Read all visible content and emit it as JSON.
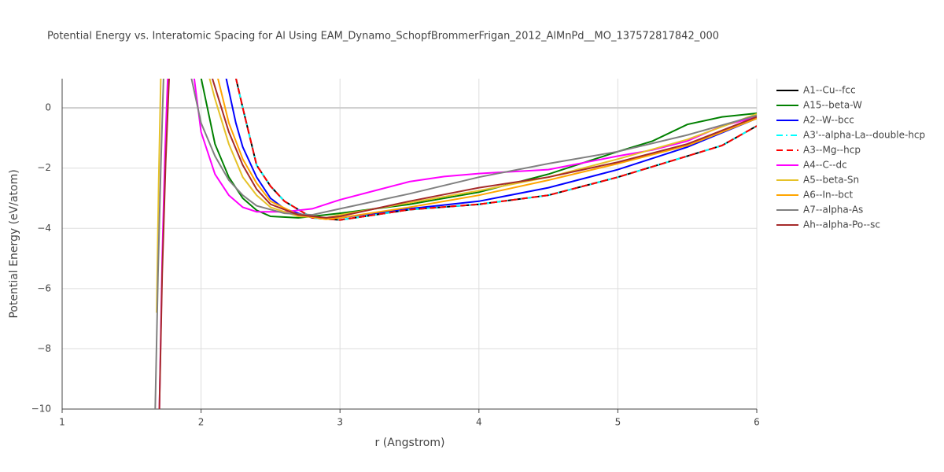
{
  "chart_data": {
    "type": "line",
    "title": "Potential Energy vs. Interatomic Spacing for Al Using EAM_Dynamo_SchopfBrommerFrigan_2012_AlMnPd__MO_137572817842_000",
    "x_label": "r (Angstrom)",
    "y_label": "Potential Energy (eV/atom)",
    "xlim": [
      1,
      6
    ],
    "ylim": [
      -10,
      0.97
    ],
    "xticks": [
      1,
      2,
      3,
      4,
      5,
      6
    ],
    "yticks": [
      {
        "value": -10,
        "label": "−10"
      },
      {
        "value": -8,
        "label": "−8"
      },
      {
        "value": -6,
        "label": "−6"
      },
      {
        "value": -4,
        "label": "−4"
      },
      {
        "value": -2,
        "label": "−2"
      },
      0
    ],
    "grid": true,
    "legend": "right",
    "series": [
      {
        "name": "A1--Cu--fcc",
        "color": "#000000",
        "dash": "solid",
        "x": [
          2.25,
          2.3,
          2.4,
          2.5,
          2.6,
          2.8,
          3.0,
          3.25,
          3.5,
          4.0,
          4.5,
          5.0,
          5.5,
          5.75,
          6.0
        ],
        "values": [
          1,
          0,
          -1.9,
          -2.6,
          -3.1,
          -3.65,
          -3.72,
          -3.55,
          -3.38,
          -3.2,
          -2.9,
          -2.3,
          -1.6,
          -1.25,
          -0.6
        ]
      },
      {
        "name": "A15--beta-W",
        "color": "#008000",
        "dash": "solid",
        "x": [
          2.0,
          2.1,
          2.2,
          2.3,
          2.4,
          2.5,
          2.7,
          3.0,
          3.5,
          4.0,
          4.5,
          5.0,
          5.25,
          5.5,
          5.75,
          6.0
        ],
        "values": [
          1,
          -1.2,
          -2.3,
          -3.0,
          -3.4,
          -3.6,
          -3.65,
          -3.5,
          -3.2,
          -2.8,
          -2.2,
          -1.45,
          -1.1,
          -0.55,
          -0.3,
          -0.18
        ]
      },
      {
        "name": "A2--W--bcc",
        "color": "#0000ff",
        "dash": "solid",
        "x": [
          2.18,
          2.25,
          2.3,
          2.4,
          2.5,
          2.6,
          2.8,
          3.0,
          3.5,
          4.0,
          4.5,
          5.0,
          5.5,
          6.0
        ],
        "values": [
          1,
          -0.5,
          -1.3,
          -2.3,
          -3.0,
          -3.35,
          -3.65,
          -3.65,
          -3.35,
          -3.1,
          -2.65,
          -2.05,
          -1.3,
          -0.35
        ]
      },
      {
        "name": "A3'--alpha-La--double-hcp",
        "color": "#00ffff",
        "dash": "dashdot",
        "x": [
          2.25,
          2.3,
          2.4,
          2.5,
          2.6,
          2.8,
          3.0,
          3.25,
          3.5,
          4.0,
          4.5,
          5.0,
          5.5,
          5.75,
          6.0
        ],
        "values": [
          1,
          0,
          -1.9,
          -2.6,
          -3.1,
          -3.65,
          -3.72,
          -3.55,
          -3.38,
          -3.2,
          -2.9,
          -2.3,
          -1.6,
          -1.25,
          -0.6
        ]
      },
      {
        "name": "A3--Mg--hcp",
        "color": "#ff0000",
        "dash": "dash",
        "x": [
          2.25,
          2.3,
          2.4,
          2.5,
          2.6,
          2.8,
          3.0,
          3.25,
          3.5,
          4.0,
          4.5,
          5.0,
          5.5,
          5.75,
          6.0
        ],
        "values": [
          1,
          0,
          -1.9,
          -2.6,
          -3.1,
          -3.65,
          -3.72,
          -3.55,
          -3.38,
          -3.2,
          -2.9,
          -2.3,
          -1.6,
          -1.25,
          -0.6
        ]
      },
      {
        "name": "A4--C--dc",
        "color": "#ff00ff",
        "dash": "solid",
        "x": [
          1.7,
          1.72,
          1.74,
          1.76,
          1.85,
          1.95,
          2.0,
          2.1,
          2.2,
          2.3,
          2.4,
          2.6,
          2.8,
          3.0,
          3.25,
          3.5,
          3.75,
          4.0,
          4.5,
          5.0,
          5.25,
          5.5,
          5.75,
          6.0
        ],
        "values": [
          -10,
          -5,
          -1.5,
          1,
          null,
          1,
          -0.8,
          -2.2,
          -2.9,
          -3.3,
          -3.45,
          -3.45,
          -3.35,
          -3.05,
          -2.75,
          -2.45,
          -2.28,
          -2.18,
          -2.05,
          -1.6,
          -1.4,
          -1.1,
          -0.6,
          -0.3
        ]
      },
      {
        "name": "A5--beta-Sn",
        "color": "#e6c229",
        "dash": "solid",
        "x": [
          1.68,
          1.695,
          1.71,
          1.9,
          2.06,
          2.1,
          2.2,
          2.3,
          2.4,
          2.5,
          2.7,
          2.9,
          3.0,
          3.5,
          4.0,
          4.5,
          5.0,
          5.5,
          6.0
        ],
        "values": [
          -6.8,
          -2.5,
          1,
          null,
          1,
          0.3,
          -1.2,
          -2.3,
          -2.9,
          -3.3,
          -3.6,
          -3.65,
          -3.55,
          -3.15,
          -2.75,
          -2.3,
          -1.7,
          -1.05,
          -0.2
        ]
      },
      {
        "name": "A6--In--bct",
        "color": "#ffa500",
        "dash": "solid",
        "x": [
          2.12,
          2.2,
          2.3,
          2.4,
          2.5,
          2.7,
          2.9,
          3.0,
          3.5,
          4.0,
          4.5,
          5.0,
          5.5,
          6.0
        ],
        "values": [
          1,
          -0.5,
          -1.7,
          -2.5,
          -3.1,
          -3.55,
          -3.7,
          -3.65,
          -3.3,
          -2.9,
          -2.4,
          -1.85,
          -1.25,
          -0.35
        ]
      },
      {
        "name": "A7--alpha-As",
        "color": "#808080",
        "dash": "solid",
        "x": [
          1.67,
          1.69,
          1.71,
          1.73,
          1.85,
          1.93,
          2.0,
          2.1,
          2.2,
          2.3,
          2.4,
          2.6,
          2.8,
          3.0,
          3.5,
          4.0,
          4.5,
          5.0,
          5.5,
          6.0
        ],
        "values": [
          -10,
          -5.5,
          -2,
          1,
          null,
          1,
          -0.5,
          -1.6,
          -2.4,
          -2.9,
          -3.25,
          -3.5,
          -3.55,
          -3.35,
          -2.85,
          -2.3,
          -1.85,
          -1.45,
          -0.9,
          -0.25
        ]
      },
      {
        "name": "Ah--alpha-Po--sc",
        "color": "#a52a2a",
        "dash": "solid",
        "x": [
          1.7,
          1.72,
          1.745,
          1.77,
          1.9,
          2.08,
          2.2,
          2.3,
          2.4,
          2.5,
          2.7,
          2.9,
          3.0,
          3.5,
          4.0,
          4.5,
          5.0,
          5.5,
          6.0
        ],
        "values": [
          -10,
          -5.5,
          -1.8,
          1,
          null,
          1,
          -0.8,
          -1.9,
          -2.7,
          -3.2,
          -3.55,
          -3.65,
          -3.6,
          -3.1,
          -2.65,
          -2.3,
          -1.8,
          -1.2,
          -0.3
        ]
      }
    ]
  }
}
